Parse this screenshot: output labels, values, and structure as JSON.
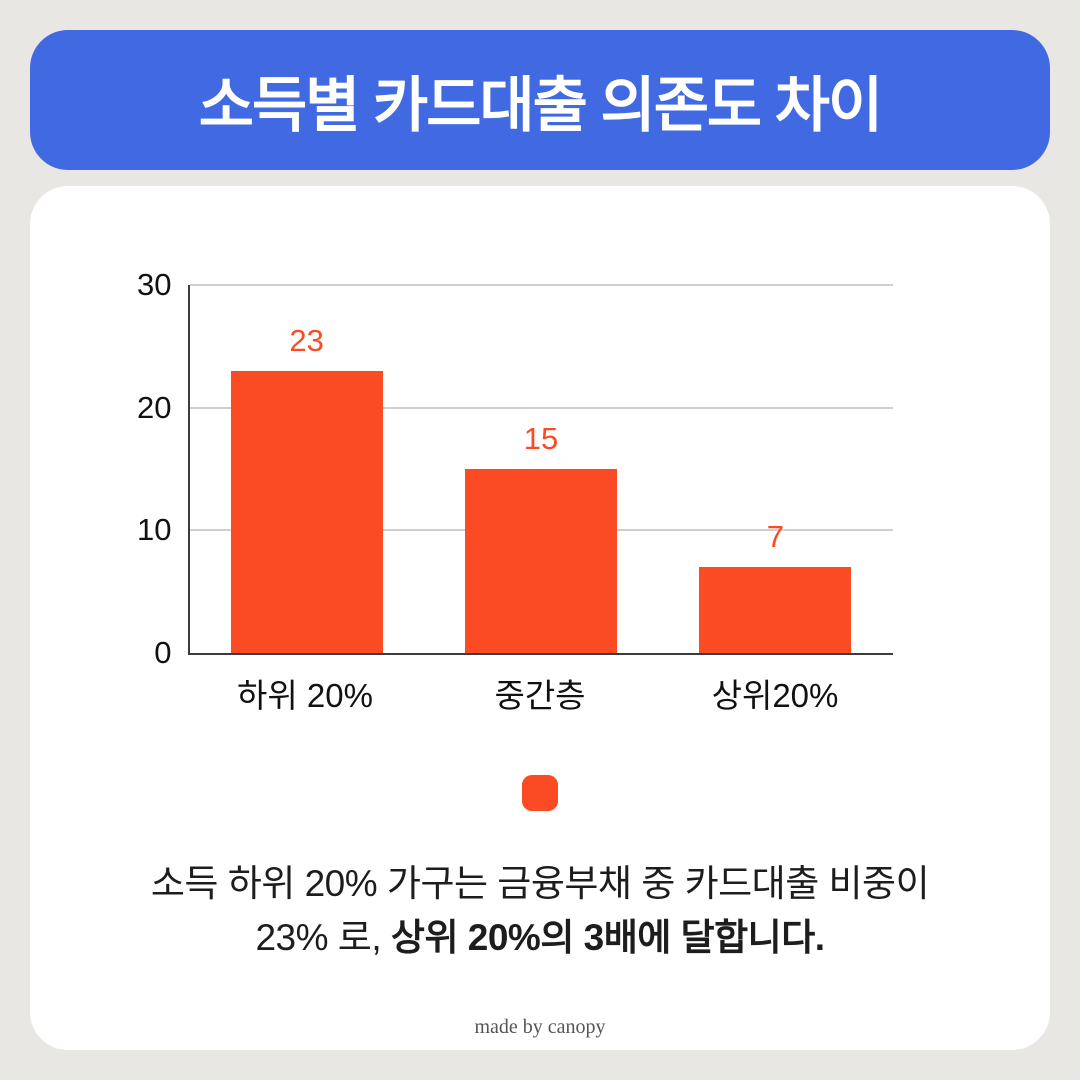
{
  "banner": {
    "title": "소득별 카드대출 의존도 차이",
    "bg_color": "#4169e1"
  },
  "chart_data": {
    "type": "bar",
    "categories": [
      "하위 20%",
      "중간층",
      "상위20%"
    ],
    "values": [
      23,
      15,
      7
    ],
    "title": "",
    "xlabel": "",
    "ylabel": "",
    "ylim": [
      0,
      30
    ],
    "yticks": [
      0,
      10,
      20,
      30
    ],
    "grid": true,
    "legend_position": "bottom-center",
    "bar_color": "#fb4b24",
    "value_label_color": "#fb4b24"
  },
  "description": {
    "line1": "소득 하위 20% 가구는 금융부채 중 카드대출 비중이",
    "line2_normal": "23% 로, ",
    "line2_bold": "상위 20%의 3배에 달합니다."
  },
  "footer": {
    "credit": "made by canopy"
  }
}
